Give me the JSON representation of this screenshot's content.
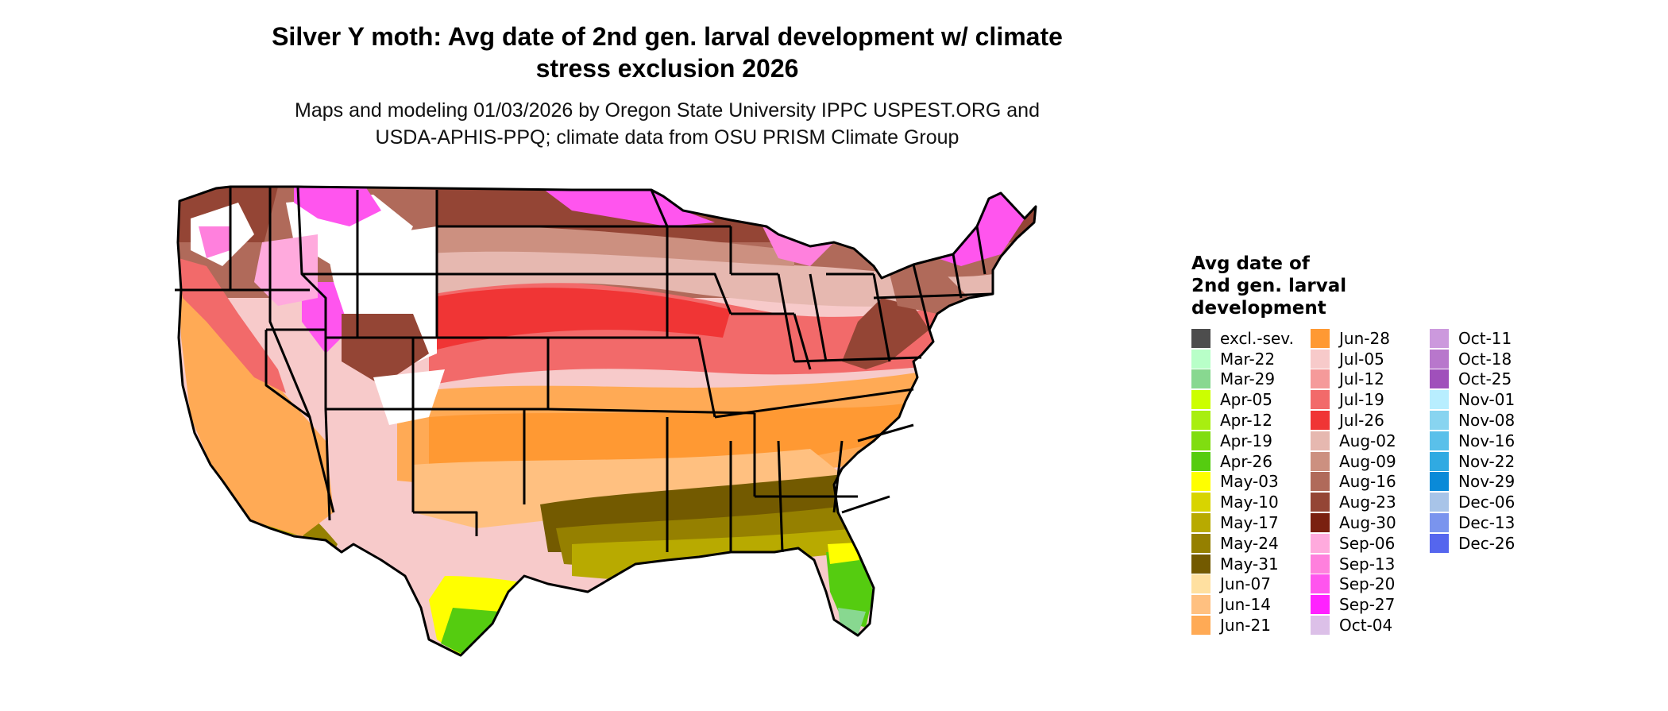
{
  "title_line1": "Silver Y moth: Avg date of 2nd gen. larval development w/ climate",
  "title_line2": "stress exclusion 2026",
  "subtitle_line1": "Maps and modeling 01/03/2026 by Oregon State University IPPC USPEST.ORG and",
  "subtitle_line2": "USDA-APHIS-PPQ; climate data from OSU PRISM Climate Group",
  "legend": {
    "title_line1": "Avg date of",
    "title_line2": "2nd gen. larval",
    "title_line3": "development",
    "columns": [
      [
        {
          "label": "excl.-sev.",
          "color": "#4d4d4d"
        },
        {
          "label": "Mar-22",
          "color": "#b8ffc8"
        },
        {
          "label": "Mar-29",
          "color": "#88d890"
        },
        {
          "label": "Apr-05",
          "color": "#ccff00"
        },
        {
          "label": "Apr-12",
          "color": "#a8ee10"
        },
        {
          "label": "Apr-19",
          "color": "#80dd10"
        },
        {
          "label": "Apr-26",
          "color": "#55cc10"
        },
        {
          "label": "May-03",
          "color": "#ffff00"
        },
        {
          "label": "May-10",
          "color": "#d8d400"
        },
        {
          "label": "May-17",
          "color": "#b8aa00"
        },
        {
          "label": "May-24",
          "color": "#958000"
        },
        {
          "label": "May-31",
          "color": "#735a00"
        },
        {
          "label": "Jun-07",
          "color": "#ffe0a0"
        },
        {
          "label": "Jun-14",
          "color": "#ffc080"
        },
        {
          "label": "Jun-21",
          "color": "#ffaa55"
        }
      ],
      [
        {
          "label": "Jun-28",
          "color": "#ff9933"
        },
        {
          "label": "Jul-05",
          "color": "#f7caca"
        },
        {
          "label": "Jul-12",
          "color": "#f59a9a"
        },
        {
          "label": "Jul-19",
          "color": "#f26a6a"
        },
        {
          "label": "Jul-26",
          "color": "#f03535"
        },
        {
          "label": "Aug-02",
          "color": "#e6b8b0"
        },
        {
          "label": "Aug-09",
          "color": "#cc9080"
        },
        {
          "label": "Aug-16",
          "color": "#b06a5a"
        },
        {
          "label": "Aug-23",
          "color": "#944535"
        },
        {
          "label": "Aug-30",
          "color": "#7a2010"
        },
        {
          "label": "Sep-06",
          "color": "#ffaadd"
        },
        {
          "label": "Sep-13",
          "color": "#ff80dd"
        },
        {
          "label": "Sep-20",
          "color": "#ff55ee"
        },
        {
          "label": "Sep-27",
          "color": "#ff22ff"
        },
        {
          "label": "Oct-04",
          "color": "#dcc0e8"
        }
      ],
      [
        {
          "label": "Oct-11",
          "color": "#cc99dd"
        },
        {
          "label": "Oct-18",
          "color": "#b877cc"
        },
        {
          "label": "Oct-25",
          "color": "#a050bb"
        },
        {
          "label": "Nov-01",
          "color": "#b8eeff"
        },
        {
          "label": "Nov-08",
          "color": "#88d4f0"
        },
        {
          "label": "Nov-16",
          "color": "#5ac0ea"
        },
        {
          "label": "Nov-22",
          "color": "#30aae2"
        },
        {
          "label": "Nov-29",
          "color": "#0a8ad8"
        },
        {
          "label": "Dec-06",
          "color": "#a8c4e8"
        },
        {
          "label": "Dec-13",
          "color": "#7a94ee"
        },
        {
          "label": "Dec-26",
          "color": "#5566ee"
        }
      ]
    ]
  }
}
